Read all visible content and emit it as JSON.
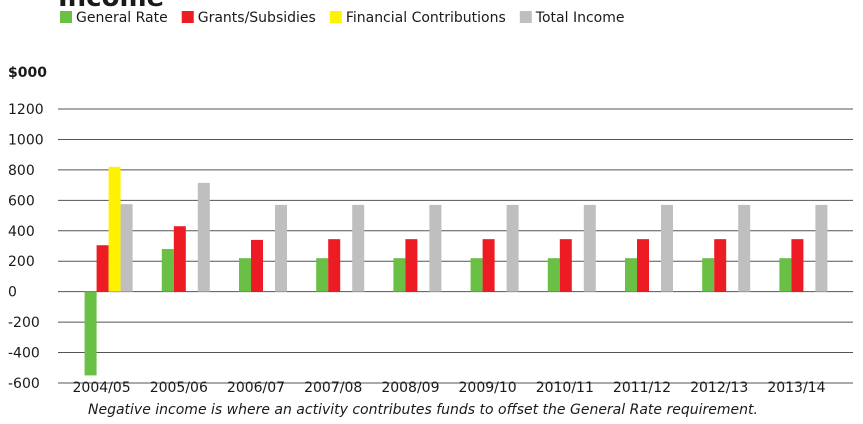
{
  "chart_data": {
    "type": "bar",
    "title": "Income",
    "y_axis_label": "$000",
    "note": "Negative income is where an activity contributes funds to offset the General Rate requirement.",
    "categories": [
      "2004/05",
      "2005/06",
      "2006/07",
      "2007/08",
      "2008/09",
      "2009/10",
      "2010/11",
      "2011/12",
      "2012/13",
      "2013/14"
    ],
    "series": [
      {
        "name": "General Rate",
        "color": "#6abf45",
        "values": [
          -550,
          280,
          220,
          220,
          220,
          220,
          220,
          220,
          220,
          220
        ]
      },
      {
        "name": "Grants/Subsidies",
        "color": "#ed1c24",
        "values": [
          305,
          430,
          340,
          345,
          345,
          345,
          345,
          345,
          345,
          345
        ]
      },
      {
        "name": "Financial Contributions",
        "color": "#fff200",
        "values": [
          820,
          null,
          null,
          null,
          null,
          null,
          null,
          null,
          null,
          null
        ]
      },
      {
        "name": "Total Income",
        "color": "#bfbfbf",
        "values": [
          575,
          715,
          570,
          570,
          570,
          570,
          570,
          570,
          570,
          570
        ]
      }
    ],
    "ylim": [
      -600,
      1200
    ],
    "yticks": [
      -600,
      -400,
      -200,
      0,
      200,
      400,
      600,
      800,
      1000,
      1200
    ],
    "grid": true,
    "legend": "top"
  }
}
